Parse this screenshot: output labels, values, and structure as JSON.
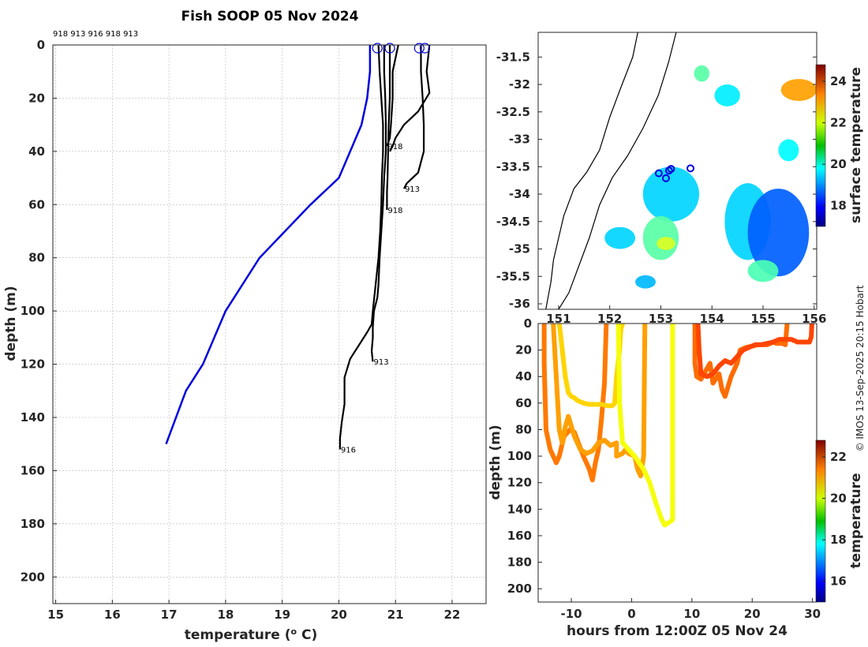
{
  "title": "Fish SOOP 05 Nov 2024",
  "credit": "© IMOS 13-Sep-2025 20:15 Hobart",
  "profile_ids_header": "918 913 916 918 913",
  "colors": {
    "climatology": "#0000dd",
    "profile": "#000000",
    "circle": "#0000dd"
  },
  "chart_data": [
    {
      "id": "profiles",
      "type": "line",
      "title": "Fish SOOP 05 Nov 2024",
      "xlabel": "temperature (",
      "xlabel_sup": "o",
      "xlabel_suffix": " C)",
      "ylabel": "depth (m)",
      "xlim": [
        14.95,
        22.6
      ],
      "ylim": [
        210,
        0
      ],
      "xticks": [
        15,
        16,
        17,
        18,
        19,
        20,
        21,
        22
      ],
      "yticks": [
        0,
        20,
        40,
        60,
        80,
        100,
        120,
        140,
        160,
        180,
        200
      ],
      "grid": true,
      "climatology": {
        "name": "climatology",
        "temp": [
          20.55,
          20.55,
          20.5,
          20.4,
          20.2,
          20.0,
          19.5,
          18.6,
          18.0,
          17.6,
          17.3,
          16.95
        ],
        "depth": [
          0,
          10,
          20,
          30,
          40,
          50,
          60,
          80,
          100,
          120,
          130,
          150
        ]
      },
      "series": [
        {
          "name": "916",
          "label": "916",
          "temp": [
            20.7,
            20.72,
            20.75,
            20.78,
            20.78,
            20.76,
            20.75,
            20.73,
            20.7,
            20.65,
            20.6,
            20.58,
            20.5,
            20.2,
            20.1,
            20.1,
            20.05,
            20.02,
            20.02
          ],
          "depth": [
            0,
            10,
            20,
            30,
            40,
            50,
            60,
            70,
            80,
            90,
            100,
            105,
            108,
            118,
            125,
            135,
            142,
            148,
            152
          ]
        },
        {
          "name": "913a",
          "label": "913",
          "temp": [
            20.8,
            20.8,
            20.82,
            20.83,
            20.83,
            20.8,
            20.78,
            20.75,
            20.72,
            20.7,
            20.68,
            20.62,
            20.6,
            20.6,
            20.58,
            20.6
          ],
          "depth": [
            0,
            10,
            20,
            30,
            40,
            50,
            60,
            70,
            80,
            90,
            95,
            100,
            106,
            110,
            115,
            119
          ]
        },
        {
          "name": "918a",
          "label": "918",
          "temp": [
            20.9,
            20.9,
            20.9,
            20.88,
            20.87,
            20.86,
            20.85,
            20.85
          ],
          "depth": [
            0,
            10,
            20,
            30,
            40,
            50,
            55,
            62
          ]
        },
        {
          "name": "918b",
          "label": "918",
          "temp": [
            21.05,
            20.95,
            20.95,
            20.92,
            20.9,
            20.85
          ],
          "depth": [
            0,
            10,
            20,
            30,
            35,
            38
          ]
        },
        {
          "name": "913b",
          "label": "913",
          "temp": [
            21.45,
            21.45,
            21.48,
            21.5,
            21.5,
            21.4,
            21.2,
            21.15
          ],
          "depth": [
            0,
            10,
            20,
            30,
            40,
            48,
            52,
            54
          ]
        },
        {
          "name": "913c",
          "label": "",
          "temp": [
            21.6,
            21.55,
            21.6,
            21.4,
            21.15,
            21.0,
            20.95,
            20.9
          ],
          "depth": [
            0,
            10,
            18,
            25,
            30,
            35,
            38,
            40
          ]
        }
      ],
      "surface_markers": [
        20.68,
        20.9,
        21.42,
        21.52
      ]
    },
    {
      "id": "map",
      "type": "heatmap",
      "xlim": [
        150.6,
        156.05
      ],
      "ylim": [
        -36.1,
        -31.05
      ],
      "xticks": [
        151,
        152,
        153,
        154,
        155,
        156
      ],
      "xticklabels": [
        "151",
        "152",
        "153",
        "154",
        "155",
        "156"
      ],
      "yticks": [
        -31.5,
        -32,
        -32.5,
        -33,
        -33.5,
        -34,
        -34.5,
        -35,
        -35.5,
        -36
      ],
      "colorbar": {
        "label": "surface temperature",
        "min": 17.0,
        "max": 24.8,
        "ticks": [
          18,
          20,
          22,
          24
        ]
      },
      "stations": [
        {
          "lon": 152.96,
          "lat": -33.62
        },
        {
          "lon": 153.16,
          "lat": -33.57
        },
        {
          "lon": 153.2,
          "lat": -33.54
        },
        {
          "lon": 153.1,
          "lat": -33.71
        },
        {
          "lon": 153.58,
          "lat": -33.53
        }
      ],
      "patches": [
        {
          "lon": 153.2,
          "lat": -34.0,
          "rlon": 0.55,
          "rlat": 0.5,
          "temp": 19.6
        },
        {
          "lon": 153.0,
          "lat": -34.8,
          "rlon": 0.35,
          "rlat": 0.4,
          "temp": 20.6
        },
        {
          "lon": 153.1,
          "lat": -34.9,
          "rlon": 0.18,
          "rlat": 0.12,
          "temp": 21.6
        },
        {
          "lon": 154.7,
          "lat": -34.5,
          "rlon": 0.45,
          "rlat": 0.7,
          "temp": 19.6
        },
        {
          "lon": 155.3,
          "lat": -34.7,
          "rlon": 0.6,
          "rlat": 0.8,
          "temp": 18.7
        },
        {
          "lon": 155.0,
          "lat": -35.4,
          "rlon": 0.3,
          "rlat": 0.2,
          "temp": 20.5
        },
        {
          "lon": 155.7,
          "lat": -32.1,
          "rlon": 0.35,
          "rlat": 0.2,
          "temp": 22.6
        },
        {
          "lon": 154.3,
          "lat": -32.2,
          "rlon": 0.25,
          "rlat": 0.2,
          "temp": 19.8
        },
        {
          "lon": 153.8,
          "lat": -31.8,
          "rlon": 0.15,
          "rlat": 0.15,
          "temp": 20.6
        },
        {
          "lon": 155.5,
          "lat": -33.2,
          "rlon": 0.2,
          "rlat": 0.2,
          "temp": 19.9
        },
        {
          "lon": 152.2,
          "lat": -34.8,
          "rlon": 0.3,
          "rlat": 0.2,
          "temp": 19.6
        },
        {
          "lon": 152.7,
          "lat": -35.6,
          "rlon": 0.2,
          "rlat": 0.12,
          "temp": 19.4
        }
      ],
      "coast": {
        "lon": [
          152.55,
          152.45,
          152.2,
          152.0,
          151.9,
          151.8,
          151.55,
          151.3,
          151.1,
          151.0,
          150.9,
          150.85,
          150.75
        ],
        "lat": [
          -31.05,
          -31.5,
          -32.1,
          -32.6,
          -32.9,
          -33.2,
          -33.6,
          -33.9,
          -34.4,
          -34.8,
          -35.2,
          -35.6,
          -36.1
        ]
      },
      "shelf": {
        "lon": [
          153.3,
          153.15,
          152.95,
          152.65,
          152.35,
          152.05,
          151.8,
          151.6,
          151.4,
          151.2,
          151.0
        ],
        "lat": [
          -31.05,
          -31.6,
          -32.2,
          -32.8,
          -33.3,
          -33.7,
          -34.2,
          -34.8,
          -35.3,
          -35.8,
          -36.1
        ]
      }
    },
    {
      "id": "timeseries",
      "type": "line",
      "xlabel": "hours from 12:00Z 05 Nov 24",
      "ylabel": "depth (m)",
      "xlim": [
        -15.5,
        30.7
      ],
      "ylim": [
        210,
        0
      ],
      "xticks": [
        -10,
        0,
        10,
        20,
        30
      ],
      "yticks": [
        0,
        20,
        40,
        60,
        80,
        100,
        120,
        140,
        160,
        180,
        200
      ],
      "colorbar": {
        "label": "temperature",
        "min": 15,
        "max": 22.8,
        "ticks": [
          16,
          18,
          20,
          22
        ]
      },
      "series": [
        {
          "name": "drop1",
          "temp": 20.9,
          "x": [
            -14.5,
            -14.5,
            -14.2,
            -13.5,
            -12.5,
            -12.0,
            -11.2,
            -10.2,
            -9.5,
            -9.0,
            -8.0,
            -7.0,
            -6.5,
            -6.0,
            -5.5,
            -5.0,
            -4.5,
            -4.2
          ],
          "depth": [
            0,
            30,
            80,
            95,
            105,
            100,
            85,
            80,
            82,
            88,
            100,
            110,
            118,
            105,
            95,
            72,
            45,
            0
          ]
        },
        {
          "name": "drop2",
          "temp": 20.6,
          "x": [
            -13.0,
            -12.5,
            -12.0,
            -11.5,
            -11.0,
            -10.5,
            -9.5,
            -8.5,
            -7.5,
            -6.5,
            -5.5,
            -4.5,
            -3.5,
            -2.5,
            -2.5,
            -1.5,
            -1.0,
            -0.5,
            0.5,
            1.0,
            1.5,
            2.0,
            2.2
          ],
          "depth": [
            0,
            40,
            80,
            90,
            78,
            70,
            85,
            95,
            98,
            96,
            90,
            88,
            92,
            90,
            100,
            98,
            95,
            98,
            100,
            110,
            115,
            100,
            0
          ]
        },
        {
          "name": "drop3",
          "temp": 20.2,
          "x": [
            -12.0,
            -11.5,
            -11.0,
            -10.5,
            -10.0,
            -9.5,
            -9.0,
            -8.0,
            -7.0,
            -6.0,
            -5.0,
            -4.0,
            -3.2,
            -2.8,
            -2.5,
            -2.0,
            -1.8,
            -1.5
          ],
          "depth": [
            0,
            20,
            40,
            52,
            55,
            56,
            58,
            60,
            61,
            61,
            61,
            62,
            62,
            60,
            40,
            20,
            5,
            0
          ]
        },
        {
          "name": "drop4",
          "temp": 19.8,
          "x": [
            -2.2,
            -2.0,
            -1.5,
            0.5,
            2.0,
            3.0,
            4.0,
            5.0,
            5.5,
            6.2,
            6.8,
            6.8
          ],
          "depth": [
            0,
            60,
            90,
            100,
            110,
            120,
            135,
            148,
            152,
            150,
            148,
            0
          ]
        },
        {
          "name": "drop5",
          "temp": 21.0,
          "x": [
            10.5,
            10.5,
            10.8,
            11.5,
            12.0,
            13.0,
            13.5,
            14.5,
            15.0,
            15.5,
            16.5,
            17.0,
            17.5,
            18.0,
            19.0,
            21.0,
            22.5,
            23.5,
            24.0,
            25.0,
            25.5,
            25.8
          ],
          "depth": [
            0,
            30,
            40,
            42,
            38,
            30,
            45,
            38,
            50,
            55,
            40,
            35,
            30,
            20,
            18,
            16,
            16,
            14,
            15,
            15,
            16,
            0
          ]
        },
        {
          "name": "drop6",
          "temp": 21.3,
          "x": [
            11.0,
            11.2,
            11.5,
            12.5,
            13.5,
            14.5,
            15.5,
            16.5,
            17.5,
            18.5,
            19.5,
            20.5,
            21.5,
            22.5,
            23.5,
            24.5,
            25.5,
            26.5,
            27.5,
            28.5,
            29.5,
            29.8,
            29.9
          ],
          "depth": [
            0,
            20,
            38,
            40,
            38,
            32,
            28,
            30,
            25,
            20,
            18,
            16,
            16,
            15,
            14,
            12,
            12,
            12,
            14,
            14,
            14,
            10,
            0
          ]
        }
      ]
    }
  ]
}
